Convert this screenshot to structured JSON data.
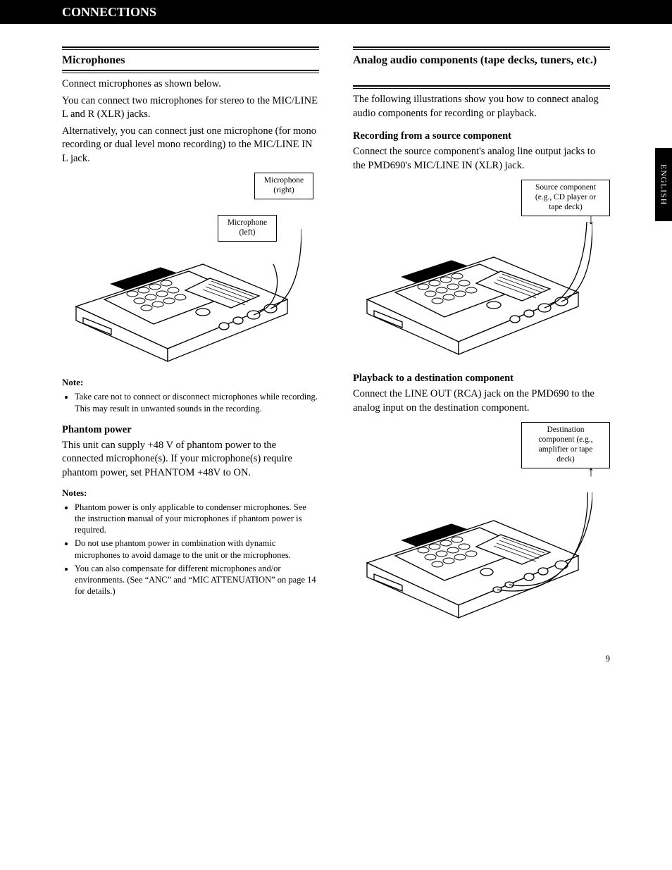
{
  "top_bar": "CONNECTIONS",
  "side_tab": "ENGLISH",
  "page_number": "9",
  "left": {
    "section_title": "Microphones",
    "p1": "Connect microphones as shown below.",
    "p2": "You can connect two microphones for stereo to the MIC/LINE L and R (XLR) jacks.",
    "p3": "Alternatively, you can connect just one microphone (for mono recording or dual level mono recording) to the MIC/LINE IN L jack.",
    "fig1_cb1": "Microphone\n(right)",
    "fig1_cb2": "Microphone\n(left)",
    "notes1_head": "Note:",
    "notes1": [
      "Take care not to connect or disconnect microphones while recording. This may result in unwanted sounds in the recording."
    ],
    "sub_head": "Phantom power",
    "p4": "This unit can supply +48 V of phantom power to the connected microphone(s). If your microphone(s) require phantom power, set PHANTOM +48V to ON.",
    "notes2_head": "Notes:",
    "notes2": [
      "Phantom power is only applicable to condenser microphones. See the instruction manual of your microphones if phantom power is required.",
      "Do not use phantom power in combination with dynamic microphones to avoid damage to the unit or the microphones.",
      "You can also compensate for different microphones and/or environments. (See “ANC” and “MIC ATTENUATION” on page 14 for details.)"
    ]
  },
  "right": {
    "section_title": "Analog audio components (tape decks, tuners, etc.)",
    "p1": "The following illustrations show you how to connect analog audio components for recording or playback.",
    "sub_head1": "Recording from a source component",
    "p2": "Connect the source component's analog line output jacks to the PMD690's MIC/LINE IN (XLR) jack.",
    "fig2_cb": "Source component\n(e.g., CD player or\ntape deck)",
    "sub_head2": "Playback to a destination component",
    "p3": "Connect the LINE OUT (RCA) jack on the PMD690 to the analog input on the destination component.",
    "fig3_cb": "Destination\ncomponent (e.g.,\namplifier or tape\ndeck)"
  }
}
